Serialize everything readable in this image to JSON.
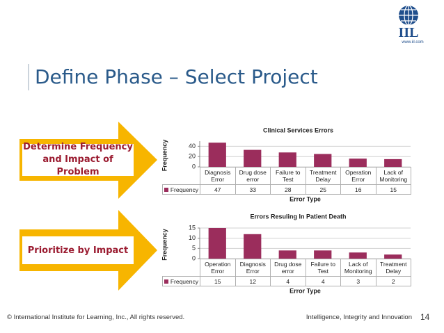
{
  "slide": {
    "title": "Define Phase – Select Project",
    "logo": "IIL",
    "logo_url": "www.iil.com",
    "steps": [
      "Determine Frequency and Impact of Problem",
      "Prioritize by Impact"
    ],
    "footer": "© International Institute for Learning, Inc., All rights reserved.",
    "tagline": "Intelligence, Integrity and Innovation",
    "page": "14"
  },
  "chart_data": [
    {
      "type": "bar",
      "title": "Clinical Services Errors",
      "y_label": "Frequency",
      "x_label": "Error Type",
      "categories": [
        "Diagnosis Error",
        "Drug dose error",
        "Failure to Test",
        "Treatment Delay",
        "Operation Error",
        "Lack of Monitoring"
      ],
      "series": [
        {
          "name": "Frequency",
          "color": "#9b2d5c",
          "values": [
            47,
            33,
            28,
            25,
            16,
            15
          ]
        }
      ],
      "ylim": [
        0,
        50
      ],
      "yticks": [
        0,
        20,
        40
      ],
      "grid": true
    },
    {
      "type": "bar",
      "title": "Errors Resuling In Patient Death",
      "y_label": "Frequency",
      "x_label": "Error Type",
      "categories": [
        "Operation Error",
        "Diagnosis Error",
        "Drug dose error",
        "Failure to Test",
        "Lack of Monitoring",
        "Treatment Delay"
      ],
      "series": [
        {
          "name": "Frequency",
          "color": "#9b2d5c",
          "values": [
            15,
            12,
            4,
            4,
            3,
            2
          ]
        }
      ],
      "ylim": [
        0,
        15
      ],
      "yticks": [
        0,
        5,
        10,
        15
      ],
      "grid": true
    }
  ]
}
